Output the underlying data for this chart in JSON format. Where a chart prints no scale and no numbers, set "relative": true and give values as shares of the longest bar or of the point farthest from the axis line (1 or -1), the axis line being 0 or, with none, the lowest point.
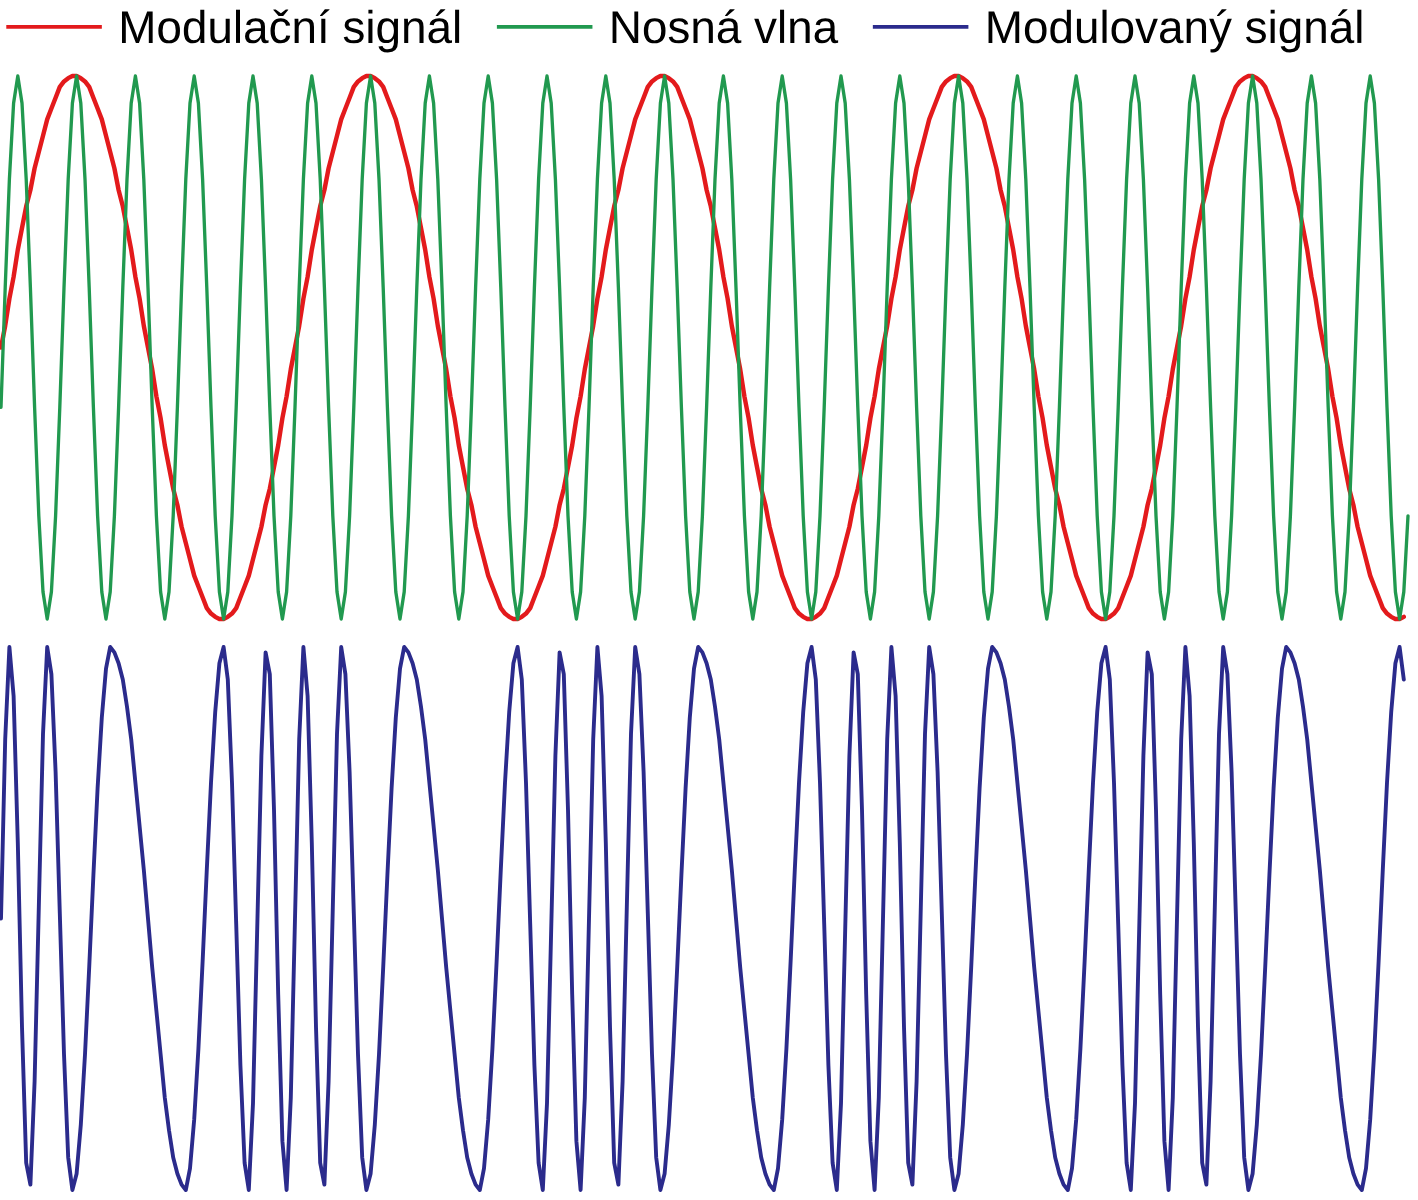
{
  "chart_data": [
    {
      "type": "line",
      "relative": true,
      "tick_labels": false,
      "legend": "top",
      "categories": [
        null,
        null,
        null,
        null,
        null,
        null,
        null,
        null,
        null,
        null,
        null,
        null,
        null,
        null,
        null,
        null,
        null,
        null,
        null,
        null,
        null,
        null,
        null,
        null,
        null,
        null,
        null,
        null,
        null,
        null,
        null,
        null,
        null,
        null,
        null,
        null,
        null,
        null,
        null,
        null,
        null,
        null,
        null,
        null,
        null,
        null,
        null,
        null,
        null,
        null,
        null,
        null,
        null,
        null,
        null,
        null,
        null,
        null,
        null,
        null,
        null,
        null,
        null,
        null,
        null,
        null,
        null,
        null,
        null,
        null,
        null,
        null,
        null,
        null,
        null,
        null,
        null,
        null,
        null,
        null,
        null,
        null,
        null,
        null,
        null,
        null,
        null,
        null,
        null,
        null,
        null,
        null,
        null,
        null,
        null,
        null,
        null,
        null,
        null,
        null,
        null,
        null,
        null,
        null,
        null,
        null,
        null,
        null,
        null,
        null,
        null,
        null,
        null,
        null,
        null,
        null,
        null,
        null,
        null,
        null,
        null,
        null,
        null,
        null,
        null,
        null,
        null,
        null,
        null,
        null,
        null,
        null,
        null,
        null,
        null,
        null,
        null,
        null,
        null,
        null,
        null,
        null,
        null,
        null,
        null,
        null,
        null,
        null,
        null,
        null,
        null,
        null,
        null,
        null,
        null,
        null,
        null,
        null,
        null,
        null,
        null,
        null,
        null,
        null,
        null,
        null,
        null,
        null,
        null,
        null,
        null,
        null,
        null,
        null,
        null,
        null,
        null,
        null,
        null,
        null,
        null,
        null,
        null,
        null,
        null,
        null,
        null,
        null,
        null,
        null,
        null,
        null,
        null,
        null,
        null,
        null,
        null,
        null,
        null,
        null,
        null,
        null,
        null,
        null,
        null,
        null,
        null,
        null,
        null,
        null,
        null,
        null,
        null,
        null,
        null,
        null,
        null,
        null,
        null,
        null,
        null,
        null,
        null,
        null,
        null,
        null,
        null,
        null,
        null,
        null,
        null,
        null,
        null,
        null,
        null,
        null,
        null,
        null,
        null,
        null,
        null,
        null,
        null,
        null,
        null,
        null,
        null,
        null,
        null,
        null,
        null,
        null,
        null,
        null,
        null,
        null,
        null,
        null,
        null,
        null,
        null,
        null,
        null,
        null,
        null,
        null,
        null,
        null,
        null,
        null,
        null,
        null,
        null,
        null,
        null,
        null,
        null,
        null,
        null,
        null,
        null,
        null,
        null,
        null,
        null,
        null,
        null,
        null,
        null,
        null,
        null,
        null,
        null,
        null,
        null,
        null,
        null,
        null,
        null,
        null,
        null,
        null,
        null,
        null,
        null,
        null,
        null,
        null,
        null,
        null,
        null,
        null,
        null,
        null,
        null,
        null,
        null,
        null,
        null,
        null,
        null,
        null,
        null,
        null,
        null,
        null,
        null,
        null,
        null,
        null,
        null,
        null,
        null,
        null,
        null,
        null
      ],
      "series": [
        {
          "name": "Modulační signál",
          "color": "#e31a1c",
          "values": [
            0.5,
            0.54,
            0.59,
            0.63,
            0.68,
            0.72,
            0.76,
            0.79,
            0.83,
            0.86,
            0.89,
            0.92,
            0.94,
            0.96,
            0.98,
            0.99,
            0.996,
            1,
            1,
            0.996,
            0.99,
            0.98,
            0.96,
            0.94,
            0.92,
            0.89,
            0.86,
            0.83,
            0.79,
            0.76,
            0.72,
            0.68,
            0.63,
            0.59,
            0.54,
            0.5,
            0.46,
            0.41,
            0.37,
            0.32,
            0.28,
            0.24,
            0.21,
            0.17,
            0.14,
            0.11,
            0.08,
            0.06,
            0.04,
            0.02,
            0.01,
            0.004,
            0,
            0,
            0.004,
            0.01,
            0.02,
            0.04,
            0.06,
            0.08,
            0.11,
            0.14,
            0.17,
            0.21,
            0.24,
            0.28,
            0.32,
            0.37,
            0.41,
            0.46,
            0.5,
            0.54,
            0.59,
            0.63,
            0.68,
            0.72,
            0.76,
            0.79,
            0.83,
            0.86,
            0.89,
            0.92,
            0.94,
            0.96,
            0.98,
            0.99,
            0.996,
            1,
            1,
            0.996,
            0.99,
            0.98,
            0.96,
            0.94,
            0.92,
            0.89,
            0.86,
            0.83,
            0.79,
            0.76,
            0.72,
            0.68,
            0.63,
            0.59,
            0.54,
            0.5,
            0.46,
            0.41,
            0.37,
            0.32,
            0.28,
            0.24,
            0.21,
            0.17,
            0.14,
            0.11,
            0.08,
            0.06,
            0.04,
            0.02,
            0.01,
            0.004,
            0,
            0,
            0.004,
            0.01,
            0.02,
            0.04,
            0.06,
            0.08,
            0.11,
            0.14,
            0.17,
            0.21,
            0.24,
            0.28,
            0.32,
            0.37,
            0.41,
            0.46,
            0.5,
            0.54,
            0.59,
            0.63,
            0.68,
            0.72,
            0.76,
            0.79,
            0.83,
            0.86,
            0.89,
            0.92,
            0.94,
            0.96,
            0.98,
            0.99,
            0.996,
            1,
            1,
            0.996,
            0.99,
            0.98,
            0.96,
            0.94,
            0.92,
            0.89,
            0.86,
            0.83,
            0.79,
            0.76,
            0.72,
            0.68,
            0.63,
            0.59,
            0.54,
            0.5,
            0.46,
            0.41,
            0.37,
            0.32,
            0.28,
            0.24,
            0.21,
            0.17,
            0.14,
            0.11,
            0.08,
            0.06,
            0.04,
            0.02,
            0.01,
            0.004,
            0,
            0,
            0.004,
            0.01,
            0.02,
            0.04,
            0.06,
            0.08,
            0.11,
            0.14,
            0.17,
            0.21,
            0.24,
            0.28,
            0.32,
            0.37,
            0.41,
            0.46,
            0.5,
            0.54,
            0.59,
            0.63,
            0.68,
            0.72,
            0.76,
            0.79,
            0.83,
            0.86,
            0.89,
            0.92,
            0.94,
            0.96,
            0.98,
            0.99,
            0.996,
            1,
            1,
            0.996,
            0.99,
            0.98,
            0.96,
            0.94,
            0.92,
            0.89,
            0.86,
            0.83,
            0.79,
            0.76,
            0.72,
            0.68,
            0.63,
            0.59,
            0.54,
            0.5,
            0.46,
            0.41,
            0.37,
            0.32,
            0.28,
            0.24,
            0.21,
            0.17,
            0.14,
            0.11,
            0.08,
            0.06,
            0.04,
            0.02,
            0.01,
            0.004,
            0,
            0,
            0.004,
            0.01,
            0.02,
            0.04,
            0.06,
            0.08,
            0.11,
            0.14,
            0.17,
            0.21,
            0.24,
            0.28,
            0.32,
            0.37,
            0.41,
            0.46,
            0.5,
            0.54,
            0.59,
            0.63,
            0.68,
            0.72,
            0.76,
            0.79,
            0.83,
            0.86,
            0.89,
            0.92,
            0.94,
            0.96,
            0.98,
            0.99,
            0.996,
            1,
            1,
            0.996,
            0.99,
            0.98,
            0.96,
            0.94,
            0.92,
            0.89,
            0.86,
            0.83,
            0.79,
            0.76,
            0.72,
            0.68,
            0.63,
            0.59,
            0.54,
            0.5,
            0.46,
            0.41,
            0.37,
            0.32,
            0.28,
            0.24,
            0.21,
            0.17,
            0.14,
            0.11,
            0.08,
            0.06,
            0.04,
            0.02,
            0.01,
            0.004,
            0,
            0,
            0.004,
            null
          ]
        },
        {
          "name": "Nosná vlna",
          "color": "#21994f",
          "values": [
            0.39,
            0.61,
            0.81,
            0.95,
            1,
            0.95,
            0.81,
            0.61,
            0.39,
            0.19,
            0.05,
            0,
            0.05,
            0.19,
            0.39,
            0.61,
            0.81,
            0.95,
            1,
            0.95,
            0.81,
            0.61,
            0.39,
            0.19,
            0.05,
            0,
            0.05,
            0.19,
            0.39,
            0.61,
            0.81,
            0.95,
            1,
            0.95,
            0.81,
            0.61,
            0.39,
            0.19,
            0.05,
            0,
            0.05,
            0.19,
            0.39,
            0.61,
            0.81,
            0.95,
            1,
            0.95,
            0.81,
            0.61,
            0.39,
            0.19,
            0.05,
            0,
            0.05,
            0.19,
            0.39,
            0.61,
            0.81,
            0.95,
            1,
            0.95,
            0.81,
            0.61,
            0.39,
            0.19,
            0.05,
            0,
            0.05,
            0.19,
            0.39,
            0.61,
            0.81,
            0.95,
            1,
            0.95,
            0.81,
            0.61,
            0.39,
            0.19,
            0.05,
            0,
            0.05,
            0.19,
            0.39,
            0.61,
            0.81,
            0.95,
            1,
            0.95,
            0.81,
            0.61,
            0.39,
            0.19,
            0.05,
            0,
            0.05,
            0.19,
            0.39,
            0.61,
            0.81,
            0.95,
            1,
            0.95,
            0.81,
            0.61,
            0.39,
            0.19,
            0.05,
            0,
            0.05,
            0.19,
            0.39,
            0.61,
            0.81,
            0.95,
            1,
            0.95,
            0.81,
            0.61,
            0.39,
            0.19,
            0.05,
            0,
            0.05,
            0.19,
            0.39,
            0.61,
            0.81,
            0.95,
            1,
            0.95,
            0.81,
            0.61,
            0.39,
            0.19,
            0.05,
            0,
            0.05,
            0.19,
            0.39,
            0.61,
            0.81,
            0.95,
            1,
            0.95,
            0.81,
            0.61,
            0.39,
            0.19,
            0.05,
            0,
            0.05,
            0.19,
            0.39,
            0.61,
            0.81,
            0.95,
            1,
            0.95,
            0.81,
            0.61,
            0.39,
            0.19,
            0.05,
            0,
            0.05,
            0.19,
            0.39,
            0.61,
            0.81,
            0.95,
            1,
            0.95,
            0.81,
            0.61,
            0.39,
            0.19,
            0.05,
            0,
            0.05,
            0.19,
            0.39,
            0.61,
            0.81,
            0.95,
            1,
            0.95,
            0.81,
            0.61,
            0.39,
            0.19,
            0.05,
            0,
            0.05,
            0.19,
            0.39,
            0.61,
            0.81,
            0.95,
            1,
            0.95,
            0.81,
            0.61,
            0.39,
            0.19,
            0.05,
            0,
            0.05,
            0.19,
            0.39,
            0.61,
            0.81,
            0.95,
            1,
            0.95,
            0.81,
            0.61,
            0.39,
            0.19,
            0.05,
            0,
            0.05,
            0.19,
            0.39,
            0.61,
            0.81,
            0.95,
            1,
            0.95,
            0.81,
            0.61,
            0.39,
            0.19,
            0.05,
            0,
            0.05,
            0.19,
            0.39,
            0.61,
            0.81,
            0.95,
            1,
            0.95,
            0.81,
            0.61,
            0.39,
            0.19,
            0.05,
            0,
            0.05,
            0.19,
            0.39,
            0.61,
            0.81,
            0.95,
            1,
            0.95,
            0.81,
            0.61,
            0.39,
            0.19,
            0.05,
            0,
            0.05,
            0.19,
            0.39,
            0.61,
            0.81,
            0.95,
            1,
            0.95,
            0.81,
            0.61,
            0.39,
            0.19,
            0.05,
            0,
            0.05,
            0.19,
            0.39,
            0.61,
            0.81,
            0.95,
            1,
            0.95,
            0.81,
            0.61,
            0.39,
            0.19,
            0.05,
            0,
            0.05,
            0.19,
            0.39,
            0.61,
            0.81,
            0.95,
            1,
            0.95,
            0.81,
            0.61,
            0.39,
            0.19,
            0.05,
            0,
            0.05,
            0.19,
            0.39,
            0.61,
            0.81,
            0.95,
            1,
            0.95,
            0.81,
            0.61,
            0.39,
            0.19,
            0.05,
            0,
            0.05,
            0.19,
            0.39,
            0.61,
            0.81,
            0.95,
            1,
            0.95,
            0.81,
            0.61,
            0.39,
            0.19,
            0.05,
            0,
            0.05,
            0.19
          ]
        }
      ]
    },
    {
      "type": "line",
      "relative": true,
      "tick_labels": false,
      "legend": "top",
      "categories": [
        null,
        null,
        null,
        null,
        null,
        null,
        null,
        null,
        null,
        null,
        null,
        null,
        null,
        null,
        null,
        null,
        null,
        null,
        null,
        null,
        null,
        null,
        null,
        null,
        null,
        null,
        null,
        null,
        null,
        null,
        null,
        null,
        null,
        null,
        null,
        null,
        null,
        null,
        null,
        null,
        null,
        null,
        null,
        null,
        null,
        null,
        null,
        null,
        null,
        null,
        null,
        null,
        null,
        null,
        null,
        null,
        null,
        null,
        null,
        null,
        null,
        null,
        null,
        null,
        null,
        null,
        null,
        null,
        null,
        null,
        null,
        null,
        null,
        null,
        null,
        null,
        null,
        null,
        null,
        null,
        null,
        null,
        null,
        null,
        null,
        null,
        null,
        null,
        null,
        null,
        null,
        null,
        null,
        null,
        null,
        null,
        null,
        null,
        null,
        null,
        null,
        null,
        null,
        null,
        null,
        null,
        null,
        null,
        null,
        null,
        null,
        null,
        null,
        null,
        null,
        null,
        null,
        null,
        null,
        null,
        null,
        null,
        null,
        null,
        null,
        null,
        null,
        null,
        null,
        null,
        null,
        null,
        null,
        null,
        null,
        null,
        null,
        null,
        null,
        null,
        null,
        null,
        null,
        null,
        null,
        null,
        null,
        null,
        null,
        null,
        null,
        null,
        null,
        null,
        null,
        null,
        null,
        null,
        null,
        null,
        null,
        null,
        null,
        null,
        null,
        null,
        null,
        null,
        null,
        null,
        null,
        null,
        null,
        null,
        null,
        null,
        null,
        null,
        null,
        null,
        null,
        null,
        null,
        null,
        null,
        null,
        null,
        null,
        null,
        null,
        null,
        null,
        null,
        null,
        null,
        null,
        null,
        null,
        null,
        null,
        null,
        null,
        null,
        null,
        null,
        null,
        null,
        null,
        null,
        null,
        null,
        null,
        null,
        null,
        null,
        null,
        null,
        null,
        null,
        null,
        null,
        null,
        null,
        null,
        null,
        null,
        null,
        null,
        null,
        null,
        null,
        null,
        null,
        null,
        null,
        null,
        null,
        null,
        null,
        null,
        null,
        null,
        null,
        null,
        null,
        null,
        null,
        null,
        null,
        null,
        null,
        null,
        null,
        null,
        null,
        null,
        null,
        null,
        null,
        null,
        null,
        null,
        null,
        null,
        null,
        null,
        null,
        null,
        null,
        null,
        null,
        null,
        null,
        null,
        null,
        null,
        null,
        null,
        null,
        null,
        null,
        null,
        null,
        null,
        null,
        null,
        null,
        null,
        null,
        null,
        null,
        null,
        null,
        null,
        null,
        null,
        null,
        null,
        null,
        null,
        null,
        null,
        null,
        null,
        null,
        null,
        null,
        null,
        null,
        null,
        null,
        null,
        null,
        null,
        null,
        null,
        null,
        null,
        null,
        null,
        null,
        null,
        null,
        null,
        null,
        null,
        null,
        null,
        null,
        null,
        null,
        null,
        null,
        null,
        null,
        null
      ],
      "series": [
        {
          "name": "Modulovaný signál",
          "color": "#2b2b8c",
          "values": [
            0.5,
            0.83,
            1,
            0.91,
            0.64,
            0.3,
            0.05,
            0.01,
            0.2,
            0.52,
            0.84,
            1,
            0.95,
            0.77,
            0.51,
            0.25,
            0.06,
            0,
            0.03,
            0.12,
            0.25,
            0.41,
            0.58,
            0.74,
            0.87,
            0.96,
            1,
            0.99,
            0.97,
            0.94,
            0.89,
            0.83,
            0.75,
            0.67,
            0.59,
            0.5,
            0.41,
            0.33,
            0.25,
            0.17,
            0.11,
            0.06,
            0.03,
            0.01,
            0,
            0.04,
            0.13,
            0.26,
            0.42,
            0.59,
            0.75,
            0.88,
            0.97,
            1,
            0.94,
            0.75,
            0.49,
            0.23,
            0.05,
            0,
            0.16,
            0.48,
            0.8,
            0.99,
            0.95,
            0.7,
            0.36,
            0.09,
            0,
            0.17,
            0.5,
            0.83,
            1,
            0.91,
            0.64,
            0.3,
            0.05,
            0.01,
            0.2,
            0.52,
            0.84,
            1,
            0.95,
            0.77,
            0.51,
            0.25,
            0.06,
            0,
            0.03,
            0.12,
            0.25,
            0.41,
            0.58,
            0.74,
            0.87,
            0.96,
            1,
            0.99,
            0.97,
            0.94,
            0.89,
            0.83,
            0.75,
            0.67,
            0.59,
            0.5,
            0.41,
            0.33,
            0.25,
            0.17,
            0.11,
            0.06,
            0.03,
            0.01,
            0,
            0.04,
            0.13,
            0.26,
            0.42,
            0.59,
            0.75,
            0.88,
            0.97,
            1,
            0.94,
            0.75,
            0.49,
            0.23,
            0.05,
            0,
            0.16,
            0.48,
            0.8,
            0.99,
            0.95,
            0.7,
            0.36,
            0.09,
            0,
            0.17,
            0.5,
            0.83,
            1,
            0.91,
            0.64,
            0.3,
            0.05,
            0.01,
            0.2,
            0.52,
            0.84,
            1,
            0.95,
            0.77,
            0.51,
            0.25,
            0.06,
            0,
            0.03,
            0.12,
            0.25,
            0.41,
            0.58,
            0.74,
            0.87,
            0.96,
            1,
            0.99,
            0.97,
            0.94,
            0.89,
            0.83,
            0.75,
            0.67,
            0.59,
            0.5,
            0.41,
            0.33,
            0.25,
            0.17,
            0.11,
            0.06,
            0.03,
            0.01,
            0,
            0.04,
            0.13,
            0.26,
            0.42,
            0.59,
            0.75,
            0.88,
            0.97,
            1,
            0.94,
            0.75,
            0.49,
            0.23,
            0.05,
            0,
            0.16,
            0.48,
            0.8,
            0.99,
            0.95,
            0.7,
            0.36,
            0.09,
            0,
            0.17,
            0.5,
            0.83,
            1,
            0.91,
            0.64,
            0.3,
            0.05,
            0.01,
            0.2,
            0.52,
            0.84,
            1,
            0.95,
            0.77,
            0.51,
            0.25,
            0.06,
            0,
            0.03,
            0.12,
            0.25,
            0.41,
            0.58,
            0.74,
            0.87,
            0.96,
            1,
            0.99,
            0.97,
            0.94,
            0.89,
            0.83,
            0.75,
            0.67,
            0.59,
            0.5,
            0.41,
            0.33,
            0.25,
            0.17,
            0.11,
            0.06,
            0.03,
            0.01,
            0,
            0.04,
            0.13,
            0.26,
            0.42,
            0.59,
            0.75,
            0.88,
            0.97,
            1,
            0.94,
            0.75,
            0.49,
            0.23,
            0.05,
            0,
            0.16,
            0.48,
            0.8,
            0.99,
            0.95,
            0.7,
            0.36,
            0.09,
            0,
            0.17,
            0.5,
            0.83,
            1,
            0.91,
            0.64,
            0.3,
            0.05,
            0.01,
            0.2,
            0.52,
            0.84,
            1,
            0.95,
            0.77,
            0.51,
            0.25,
            0.06,
            0,
            0.03,
            0.12,
            0.25,
            0.41,
            0.58,
            0.74,
            0.87,
            0.96,
            1,
            0.99,
            0.97,
            0.94,
            0.89,
            0.83,
            0.75,
            0.67,
            0.59,
            0.5,
            0.41,
            0.33,
            0.25,
            0.17,
            0.11,
            0.06,
            0.03,
            0.01,
            0,
            0.04,
            0.13,
            0.26,
            0.42,
            0.59,
            0.75,
            0.88,
            0.97,
            1,
            0.94,
            null
          ]
        }
      ]
    }
  ]
}
